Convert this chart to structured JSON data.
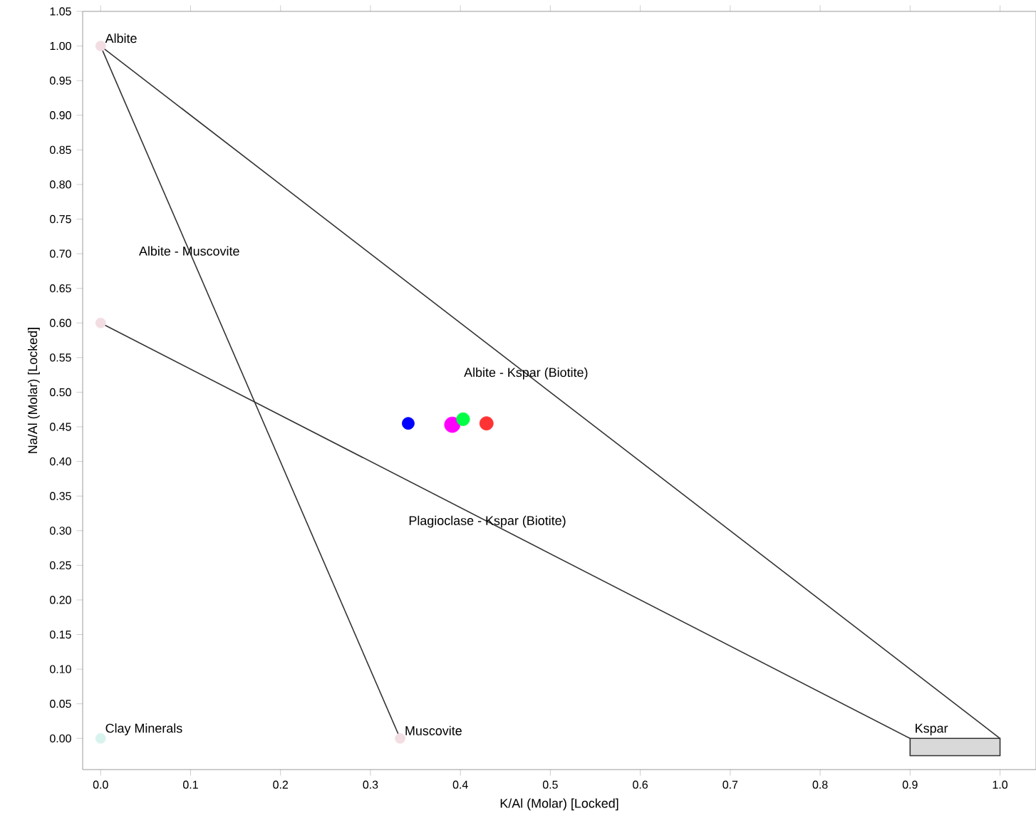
{
  "chart_data": {
    "type": "scatter",
    "xlabel": "K/Al (Molar) [Locked]",
    "ylabel": "Na/Al (Molar) [Locked]",
    "xlim": [
      -0.02,
      1.04
    ],
    "ylim": [
      -0.045,
      1.05
    ],
    "xticks": [
      {
        "value": 0,
        "label": "0.0"
      },
      {
        "value": 0.1,
        "label": "0.1"
      },
      {
        "value": 0.2,
        "label": "0.2"
      },
      {
        "value": 0.3,
        "label": "0.3"
      },
      {
        "value": 0.4,
        "label": "0.4"
      },
      {
        "value": 0.5,
        "label": "0.5"
      },
      {
        "value": 0.6,
        "label": "0.6"
      },
      {
        "value": 0.7,
        "label": "0.7"
      },
      {
        "value": 0.8,
        "label": "0.8"
      },
      {
        "value": 0.9,
        "label": "0.9"
      },
      {
        "value": 1.0,
        "label": "1.0"
      }
    ],
    "yticks": [
      {
        "value": 0,
        "label": "0.00"
      },
      {
        "value": 0.05,
        "label": "0.05"
      },
      {
        "value": 0.1,
        "label": "0.10"
      },
      {
        "value": 0.15,
        "label": "0.15"
      },
      {
        "value": 0.2,
        "label": "0.20"
      },
      {
        "value": 0.25,
        "label": "0.25"
      },
      {
        "value": 0.3,
        "label": "0.30"
      },
      {
        "value": 0.35,
        "label": "0.35"
      },
      {
        "value": 0.4,
        "label": "0.40"
      },
      {
        "value": 0.45,
        "label": "0.45"
      },
      {
        "value": 0.5,
        "label": "0.50"
      },
      {
        "value": 0.55,
        "label": "0.55"
      },
      {
        "value": 0.6,
        "label": "0.60"
      },
      {
        "value": 0.65,
        "label": "0.65"
      },
      {
        "value": 0.7,
        "label": "0.70"
      },
      {
        "value": 0.75,
        "label": "0.75"
      },
      {
        "value": 0.8,
        "label": "0.80"
      },
      {
        "value": 0.85,
        "label": "0.85"
      },
      {
        "value": 0.9,
        "label": "0.90"
      },
      {
        "value": 0.95,
        "label": "0.95"
      },
      {
        "value": 1.0,
        "label": "1.00"
      },
      {
        "value": 1.05,
        "label": "1.05"
      }
    ],
    "series": [
      {
        "type": "line",
        "marker": "none",
        "color": "#333333",
        "x": [
          0,
          0.333
        ],
        "values": [
          1.0,
          0
        ]
      },
      {
        "type": "line",
        "marker": "none",
        "color": "#333333",
        "x": [
          0,
          1.0
        ],
        "values": [
          1.0,
          0
        ]
      },
      {
        "type": "line",
        "marker": "none",
        "color": "#333333",
        "x": [
          0,
          0.9
        ],
        "values": [
          0.6,
          0
        ]
      },
      {
        "type": "area",
        "marker": "none",
        "color": "#d9d9d9",
        "x": [
          0.9,
          1.0
        ],
        "values": [
          -0.025,
          -0.025
        ]
      },
      {
        "marker": "circle",
        "x": [
          0,
          0,
          0,
          0.333
        ],
        "values": [
          1.0,
          0.6,
          0,
          0
        ],
        "colors": [
          "#f2dde3",
          "#f2dde3",
          "#d8f3ee",
          "#f2dde3"
        ]
      },
      {
        "marker": "circle",
        "x": [
          0.342,
          0.391,
          0.403,
          0.429
        ],
        "values": [
          0.455,
          0.453,
          0.461,
          0.455
        ],
        "colors": [
          "#0000ff",
          "#ff00ff",
          "#00ff44",
          "#ff3333"
        ],
        "sizes": [
          0.6,
          1,
          0.7,
          0.75
        ]
      }
    ],
    "annotations": [
      {
        "text": "Albite",
        "x": 0,
        "y": 1.0
      },
      {
        "text": "Albite - Muscovite",
        "x": 0.0986,
        "y": 0.704
      },
      {
        "text": "Albite - Kspar (Biotite)",
        "x": 0.473,
        "y": 0.527
      },
      {
        "text": "Plagioclase - Kspar (Biotite)",
        "x": 0.43,
        "y": 0.313
      },
      {
        "text": "Kspar",
        "x": 0.9,
        "y": 0
      },
      {
        "text": "Muscovite",
        "x": 0.333,
        "y": 0
      },
      {
        "text": "Clay Minerals",
        "x": 0,
        "y": 0
      }
    ]
  }
}
